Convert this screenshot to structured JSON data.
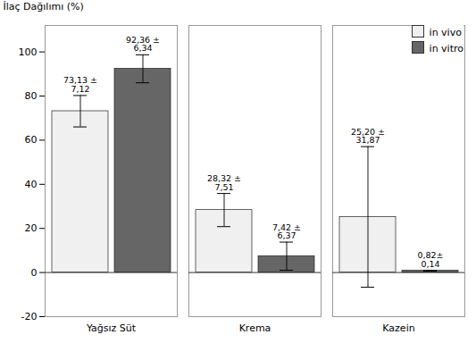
{
  "chart_data": {
    "type": "bar",
    "categories": [
      "Yağsız Süt",
      "Krema",
      "Kazein"
    ],
    "series": [
      {
        "name": "in vivo",
        "color": "#f0f0f0",
        "values": [
          73.13,
          28.32,
          25.2
        ],
        "errors": [
          7.12,
          7.51,
          31.87
        ],
        "value_labels": [
          "73,13 ±\n7,12",
          "28,32 ±\n7,51",
          "25,20 ±\n31,87"
        ]
      },
      {
        "name": "in vitro",
        "color": "#666666",
        "values": [
          92.36,
          7.42,
          0.82
        ],
        "errors": [
          6.34,
          6.37,
          0.14
        ],
        "value_labels": [
          "92,36 ±\n6,34",
          "7,42 ±\n6,37",
          "0,82±\n0,14"
        ]
      }
    ],
    "ylabel": "İlaç Dağılımı (%)",
    "ylim": [
      -20,
      112
    ],
    "yticks": [
      -20,
      0,
      20,
      40,
      60,
      80,
      100
    ],
    "grid": false,
    "legend": "upper right",
    "data_labels": true
  }
}
